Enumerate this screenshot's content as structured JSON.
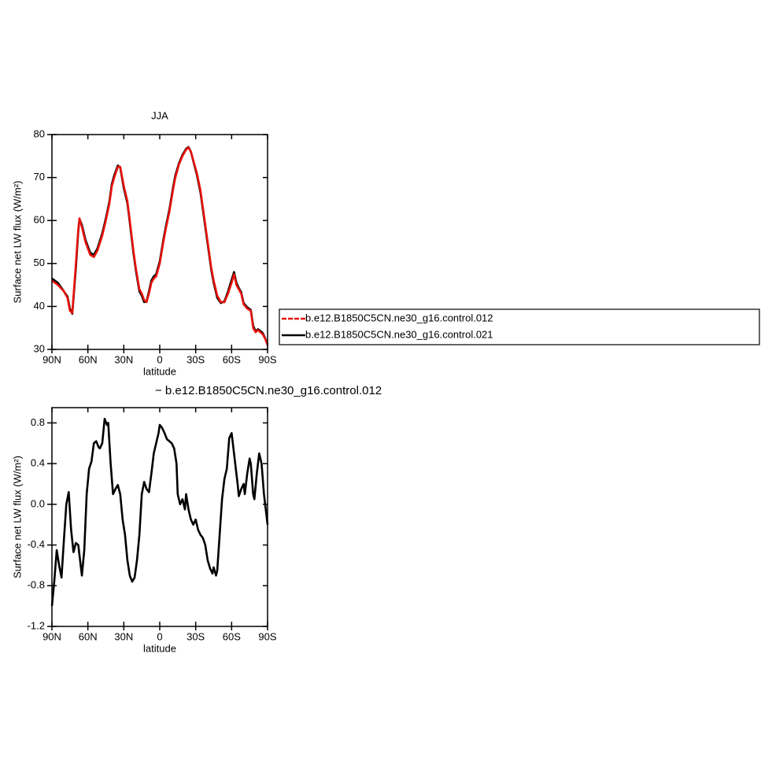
{
  "chart_data": [
    {
      "type": "line",
      "title": "JJA",
      "xlabel": "latitude",
      "ylabel": "Surface net LW flux (W/m²)",
      "x": [
        90,
        85,
        80,
        77,
        75,
        73,
        70,
        68,
        67,
        65,
        62,
        58,
        55,
        52,
        48,
        45,
        42,
        40,
        38,
        35,
        33,
        30,
        27,
        25,
        22,
        20,
        17,
        15,
        13,
        11,
        9,
        7,
        5,
        3,
        0,
        -3,
        -5,
        -8,
        -11,
        -13,
        -16,
        -19,
        -22,
        -24,
        -26,
        -28,
        -31,
        -34,
        -37,
        -40,
        -43,
        -45,
        -48,
        -51,
        -54,
        -57,
        -60,
        -62,
        -64,
        -66,
        -68,
        -70,
        -73,
        -76,
        -78,
        -80,
        -82,
        -84,
        -86,
        -88,
        -90
      ],
      "series": [
        {
          "name": "b.e12.B1850C5CN.ne30_g16.control.012",
          "color": "#e8120c",
          "values": [
            46,
            45,
            43.5,
            42,
            39,
            38.5,
            50,
            58,
            60.5,
            58.5,
            55,
            52,
            51.5,
            53,
            56.5,
            60,
            64,
            68,
            70,
            72.5,
            72.5,
            68,
            64.5,
            60,
            53,
            49,
            44,
            43,
            41.5,
            41,
            43,
            45.5,
            46.5,
            47,
            50,
            55,
            58,
            62,
            67,
            70,
            73,
            75,
            76.5,
            77,
            76,
            74,
            71,
            67,
            61,
            55,
            49,
            46,
            42.5,
            41,
            41,
            43,
            45.5,
            47.5,
            45,
            44,
            43,
            40.5,
            39.5,
            39,
            35,
            34,
            34.5,
            34,
            33.5,
            32.5,
            31
          ]
        },
        {
          "name": "b.e12.B1850C5CN.ne30_g16.control.021",
          "color": "#000000",
          "values": [
            46.5,
            45.5,
            43.5,
            42.3,
            39.5,
            38.3,
            49,
            57.5,
            60.3,
            59,
            55.5,
            52.5,
            52,
            53.5,
            57,
            60.5,
            64.5,
            68.5,
            70.5,
            72.8,
            72.3,
            67.5,
            64,
            59.5,
            52.5,
            48.5,
            43.5,
            42.5,
            41,
            41.2,
            43.5,
            46,
            47,
            47.5,
            50.5,
            55.5,
            58.5,
            62.5,
            67.5,
            70.5,
            73.3,
            75.3,
            76.7,
            77.1,
            76,
            73.8,
            70.6,
            66.5,
            60.5,
            54.5,
            48.5,
            45.5,
            42,
            40.8,
            41.2,
            43.5,
            46.2,
            48,
            45.5,
            44.3,
            43.3,
            40.8,
            39.8,
            39.2,
            35.5,
            34.2,
            34.7,
            34.3,
            33.8,
            32.6,
            31.2
          ]
        }
      ],
      "xlim": [
        90,
        -90
      ],
      "xticks": [
        {
          "value": 90,
          "label": "90N"
        },
        {
          "value": 60,
          "label": "60N"
        },
        {
          "value": 30,
          "label": "30N"
        },
        0,
        {
          "value": -30,
          "label": "30S"
        },
        {
          "value": -60,
          "label": "60S"
        },
        {
          "value": -90,
          "label": "90S"
        }
      ],
      "ylim": [
        30,
        80
      ],
      "yticks": [
        30,
        40,
        50,
        60,
        70,
        80
      ],
      "legend": "right"
    },
    {
      "type": "line",
      "title": "− b.e12.B1850C5CN.ne30_g16.control.012",
      "xlabel": "latitude",
      "ylabel": "Surface net LW flux (W/m²)",
      "x": [
        90,
        88,
        86,
        84,
        82,
        80,
        78,
        76,
        74,
        72,
        70,
        68,
        66,
        65,
        63,
        61,
        59,
        57,
        55,
        53,
        51,
        50,
        48,
        46,
        44,
        43,
        41,
        39,
        37,
        35,
        33,
        31,
        29,
        27,
        25,
        23,
        21,
        19,
        17,
        15,
        13,
        11,
        9,
        7,
        5,
        3,
        1,
        0,
        -2,
        -4,
        -6,
        -8,
        -10,
        -12,
        -14,
        -15,
        -17,
        -19,
        -21,
        -22,
        -24,
        -26,
        -28,
        -30,
        -32,
        -34,
        -36,
        -38,
        -40,
        -42,
        -44,
        -45,
        -47,
        -48,
        -50,
        -52,
        -54,
        -56,
        -58,
        -60,
        -61,
        -63,
        -65,
        -66,
        -68,
        -70,
        -71,
        -73,
        -75,
        -76,
        -78,
        -79,
        -81,
        -83,
        -85,
        -87,
        -89,
        -90
      ],
      "series": [
        {
          "color": "#000000",
          "values": [
            -1.0,
            -0.75,
            -0.45,
            -0.6,
            -0.72,
            -0.35,
            0.0,
            0.12,
            -0.25,
            -0.47,
            -0.38,
            -0.4,
            -0.6,
            -0.7,
            -0.45,
            0.1,
            0.35,
            0.42,
            0.6,
            0.62,
            0.56,
            0.55,
            0.6,
            0.84,
            0.78,
            0.8,
            0.4,
            0.1,
            0.15,
            0.19,
            0.1,
            -0.15,
            -0.3,
            -0.55,
            -0.7,
            -0.76,
            -0.72,
            -0.55,
            -0.3,
            0.1,
            0.22,
            0.15,
            0.12,
            0.3,
            0.5,
            0.6,
            0.7,
            0.78,
            0.75,
            0.7,
            0.64,
            0.62,
            0.6,
            0.55,
            0.4,
            0.1,
            0.0,
            0.05,
            -0.05,
            0.1,
            -0.05,
            -0.15,
            -0.2,
            -0.15,
            -0.25,
            -0.3,
            -0.33,
            -0.4,
            -0.55,
            -0.63,
            -0.68,
            -0.62,
            -0.7,
            -0.65,
            -0.3,
            0.05,
            0.25,
            0.35,
            0.65,
            0.7,
            0.6,
            0.4,
            0.2,
            0.08,
            0.15,
            0.2,
            0.1,
            0.3,
            0.45,
            0.4,
            0.1,
            0.05,
            0.3,
            0.5,
            0.4,
            0.1,
            -0.1,
            -0.2
          ]
        }
      ],
      "xlim": [
        90,
        -90
      ],
      "xticks": [
        {
          "value": 90,
          "label": "90N"
        },
        {
          "value": 60,
          "label": "60N"
        },
        {
          "value": 30,
          "label": "30N"
        },
        0,
        {
          "value": -30,
          "label": "30S"
        },
        {
          "value": -60,
          "label": "60S"
        },
        {
          "value": -90,
          "label": "90S"
        }
      ],
      "ylim": [
        -1.2,
        0.95
      ],
      "yticks": [
        -1.2,
        -0.8,
        -0.4,
        {
          "value": 0,
          "label": "0.0"
        },
        0.4,
        0.8
      ]
    }
  ]
}
